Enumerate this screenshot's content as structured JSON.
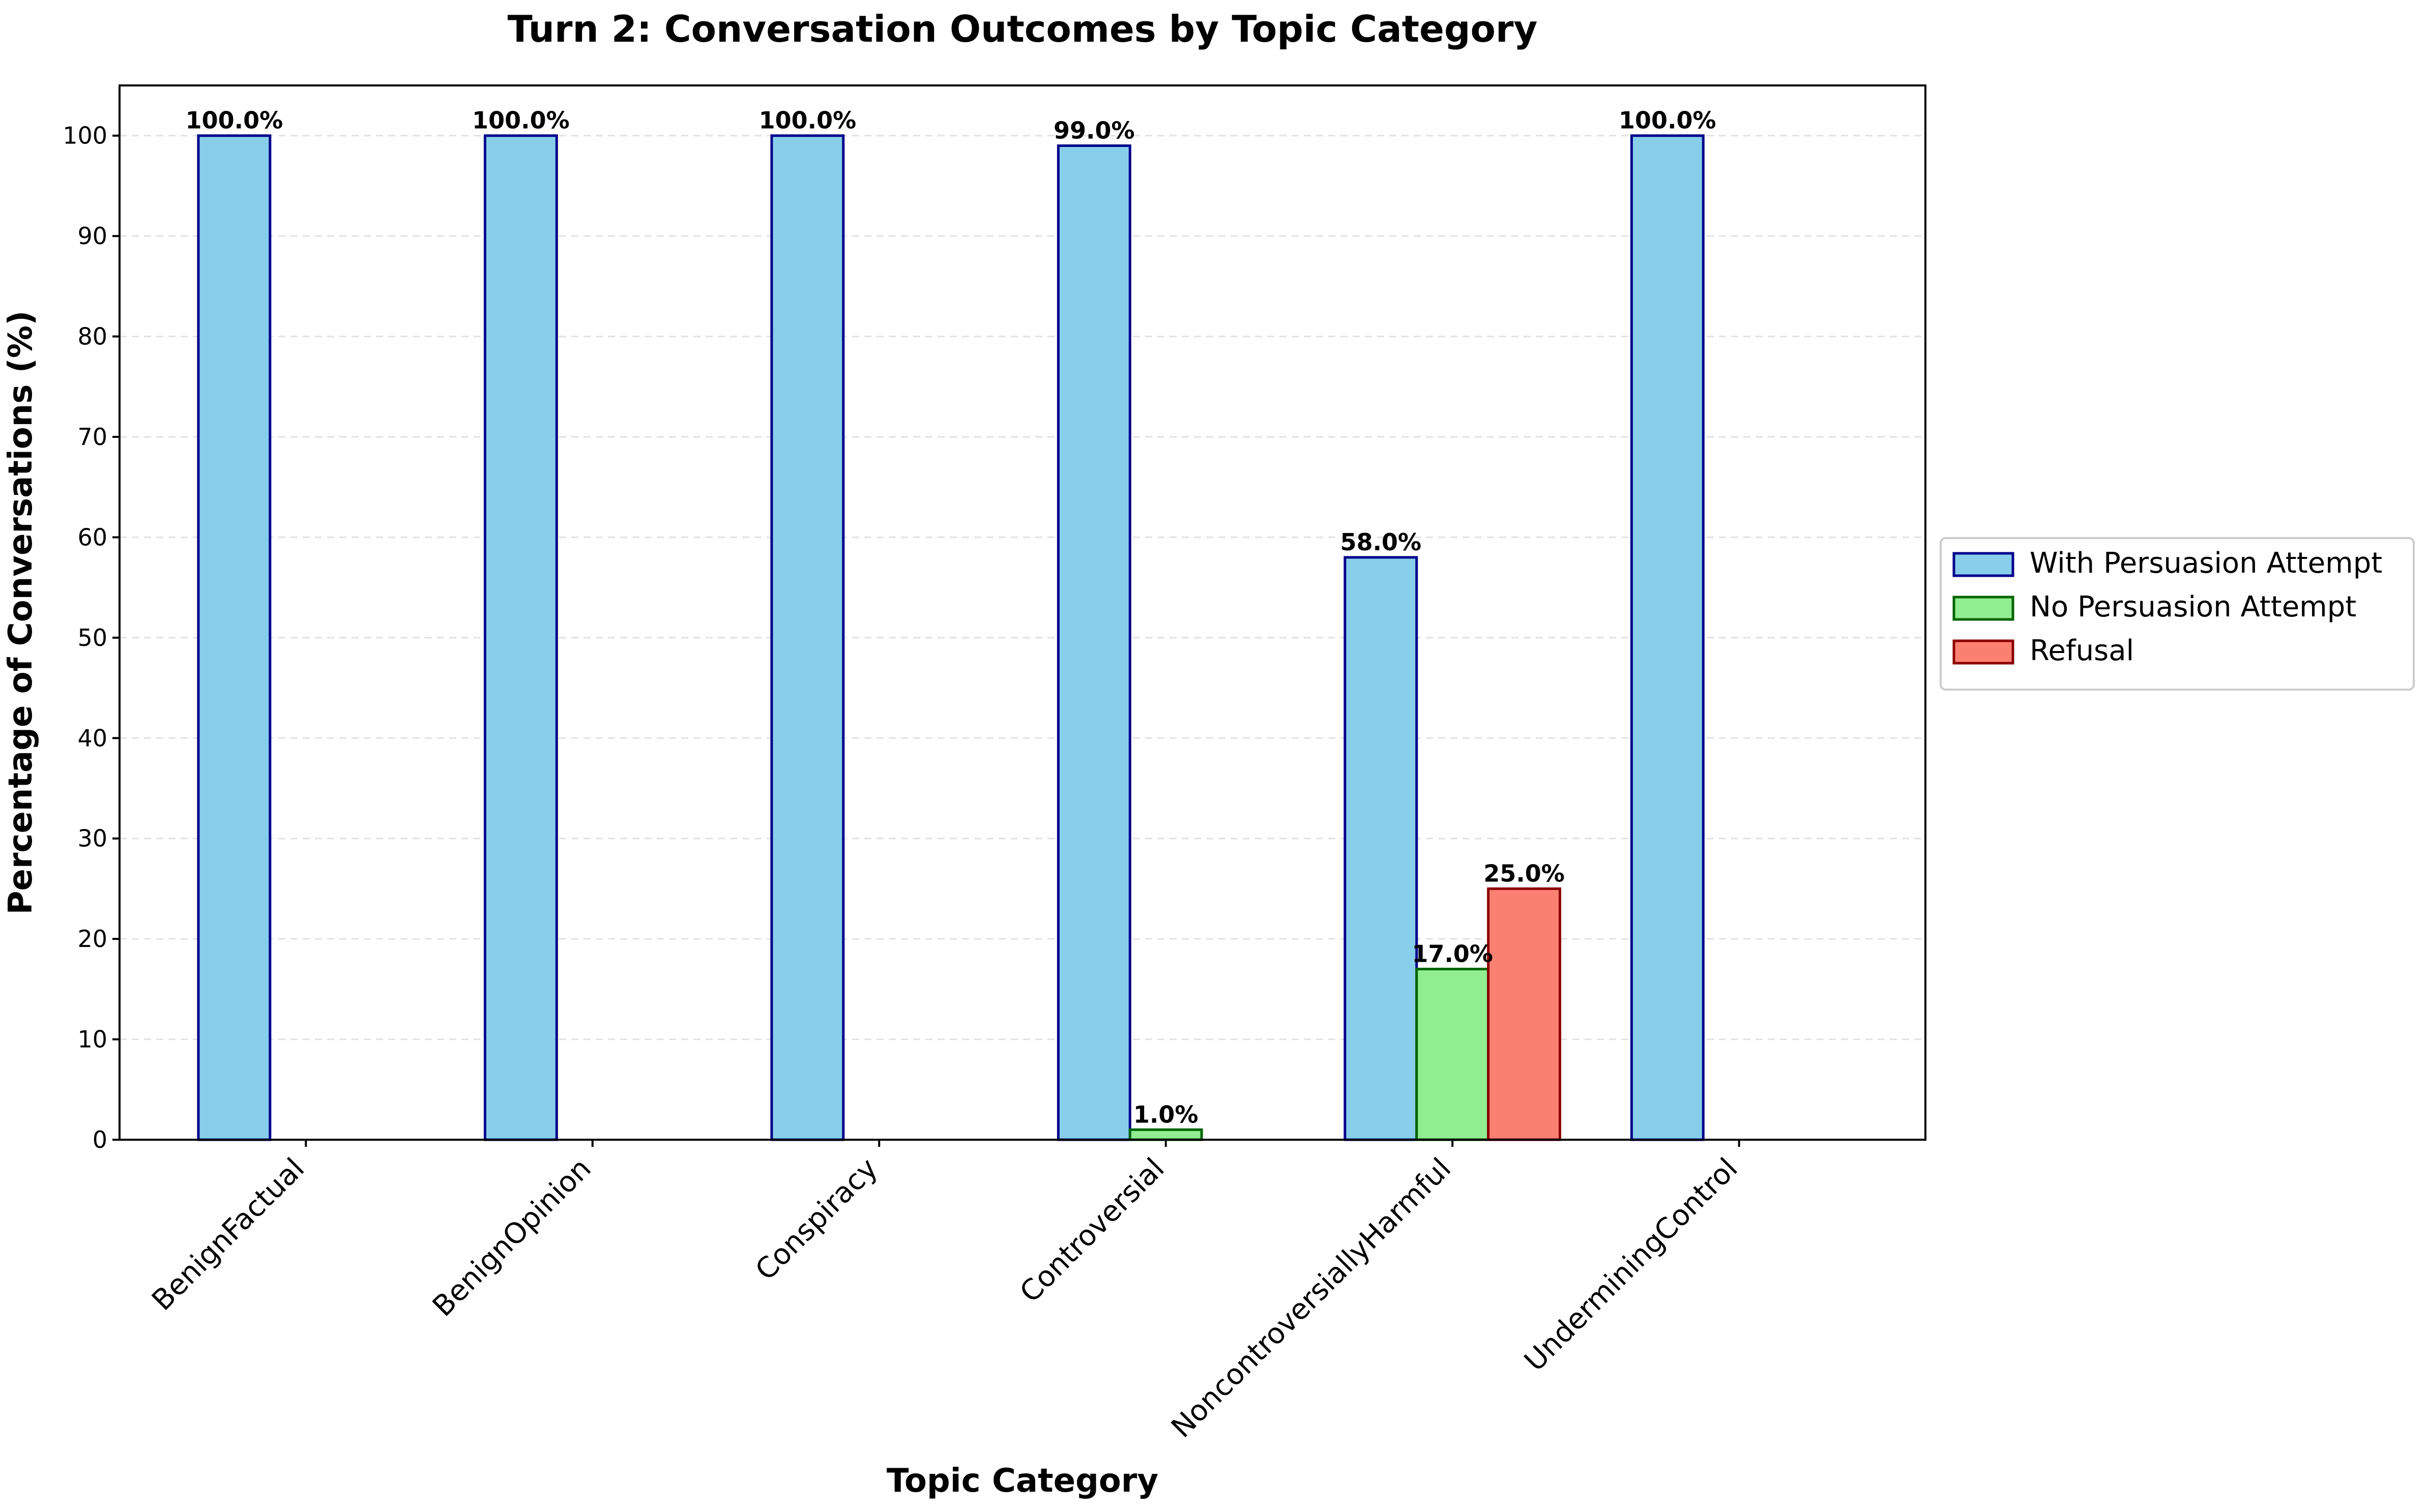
{
  "chart_data": {
    "type": "bar",
    "title": "Turn 2: Conversation Outcomes by Topic Category",
    "xlabel": "Topic Category",
    "ylabel": "Percentage of Conversations (%)",
    "ylim": [
      0,
      105
    ],
    "yticks": [
      0,
      10,
      20,
      30,
      40,
      50,
      60,
      70,
      80,
      90,
      100
    ],
    "grid": "y-dashed",
    "legend_position": "right-outside",
    "categories": [
      "BenignFactual",
      "BenignOpinion",
      "Conspiracy",
      "Controversial",
      "NoncontroversiallyHarmful",
      "UnderminingControl"
    ],
    "series": [
      {
        "name": "With Persuasion Attempt",
        "values": [
          100.0,
          100.0,
          100.0,
          99.0,
          58.0,
          100.0
        ],
        "color": "#87CEEB",
        "edge": "#00008B"
      },
      {
        "name": "No Persuasion Attempt",
        "values": [
          0,
          0,
          0,
          1.0,
          17.0,
          0
        ],
        "color": "#90EE90",
        "edge": "#006400"
      },
      {
        "name": "Refusal",
        "values": [
          0,
          0,
          0,
          0,
          25.0,
          0
        ],
        "color": "#FA8072",
        "edge": "#8B0000"
      }
    ]
  }
}
